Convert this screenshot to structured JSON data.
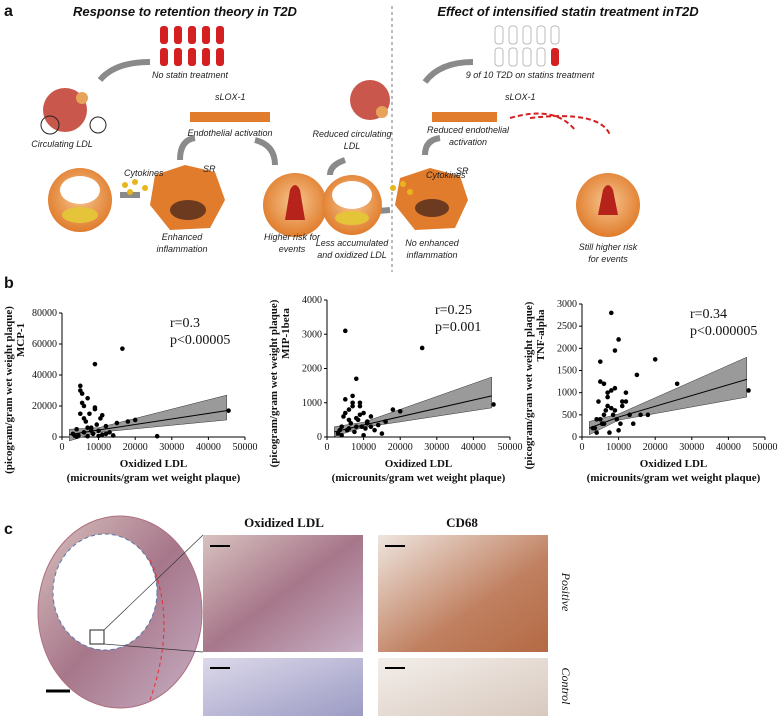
{
  "panel_a": {
    "label": "a",
    "title_left": "Response to retention theory in T2D",
    "title_right": "Effect of intensified statin treatment inT2D",
    "no_statin": "No statin treatment",
    "slox_left": "sLOX-1",
    "endothelial_activation": "Endothelial activation",
    "circulating_ldl": "Circulating LDL",
    "cytokines_left": "Cytokines",
    "sr_left": "SR",
    "enhanced_inflammation": [
      "Enhanced",
      "inflammation"
    ],
    "higher_risk": [
      "Higher risk for",
      "events"
    ],
    "statins": "9 of 10 T2D on statins treatment",
    "slox_right": "sLOX-1",
    "reduced_circulating": [
      "Reduced circulating",
      "LDL"
    ],
    "reduced_endothelial": [
      "Reduced endothelial",
      "activation"
    ],
    "cytokines_right": "Cytokines",
    "sr_right": "SR",
    "less_accumulated": [
      "Less accumulated",
      "and oxidized LDL"
    ],
    "no_enhanced": [
      "No enhanced",
      "inflammation"
    ],
    "still_higher": [
      "Still higher risk",
      "for events"
    ]
  },
  "panel_b": {
    "label": "b"
  },
  "chart_data": [
    {
      "type": "scatter",
      "y_label": [
        "MCP-1",
        "(picogram/gram wet weight plaque)"
      ],
      "x_label": [
        "Oxidized LDL",
        "(microunits/gram wet weight plaque)"
      ],
      "annotations": [
        "r=0.3",
        "p<0.00005"
      ],
      "x": [
        3000,
        4000,
        4500,
        5000,
        5500,
        6000,
        6500,
        7000,
        7500,
        8000,
        8500,
        9000,
        9500,
        10000,
        10500,
        11000,
        12000,
        13000,
        14000,
        15000,
        4000,
        5000,
        6000,
        7000,
        8000,
        9000,
        10000,
        11000,
        3500,
        5000,
        5500,
        9000,
        16500,
        45500,
        20000,
        18000,
        26000,
        12000,
        7000,
        6000
      ],
      "values": [
        2000,
        5000,
        1000,
        33000,
        28000,
        3000,
        10000,
        500,
        15000,
        6000,
        2000,
        47000,
        8000,
        4000,
        12000,
        1500,
        7000,
        3000,
        1000,
        9000,
        200,
        15000,
        20000,
        25000,
        4000,
        18000,
        700,
        14000,
        800,
        30000,
        22000,
        19000,
        57000,
        17000,
        11000,
        10000,
        500,
        2000,
        6000,
        12000
      ],
      "color": "#000000",
      "fit": {
        "x": [
          2000,
          10000,
          45000
        ],
        "y": [
          1500,
          4500,
          17000
        ],
        "lower": [
          -2500,
          3000,
          11000
        ],
        "upper": [
          5000,
          6000,
          27000
        ]
      },
      "xlim": [
        0,
        50000
      ],
      "ylim": [
        0,
        80000
      ],
      "xticks": [
        0,
        10000,
        20000,
        30000,
        40000,
        50000
      ],
      "yticks": [
        0,
        20000,
        40000,
        60000,
        80000
      ]
    },
    {
      "type": "scatter",
      "y_label": [
        "MIP-1beta",
        "(picogram/gram wet weight plaque)"
      ],
      "x_label": [
        "Oxidized LDL",
        "(microunits/gram wet weight plaque)"
      ],
      "annotations": [
        "r=0.25",
        "p=0.001"
      ],
      "x": [
        3000,
        4000,
        4500,
        5000,
        5500,
        6000,
        6500,
        7000,
        7500,
        8000,
        8500,
        9000,
        9500,
        10000,
        10500,
        11000,
        12000,
        13000,
        14000,
        15000,
        4000,
        5000,
        6000,
        7000,
        8000,
        9000,
        10000,
        11000,
        3500,
        5000,
        26000,
        45500,
        18000,
        20000,
        12000,
        7000,
        6000,
        8000,
        16000,
        9000
      ],
      "values": [
        100,
        300,
        600,
        3100,
        200,
        800,
        400,
        1000,
        150,
        1700,
        500,
        900,
        300,
        700,
        250,
        400,
        600,
        200,
        350,
        100,
        50,
        1100,
        500,
        900,
        300,
        650,
        50,
        450,
        200,
        700,
        2600,
        950,
        800,
        750,
        300,
        1200,
        250,
        550,
        450,
        1000
      ],
      "color": "#000000",
      "fit": {
        "x": [
          2000,
          10000,
          45000
        ],
        "y": [
          150,
          350,
          1200
        ],
        "lower": [
          20,
          280,
          850
        ],
        "upper": [
          300,
          430,
          1750
        ]
      },
      "xlim": [
        0,
        50000
      ],
      "ylim": [
        0,
        4000
      ],
      "xticks": [
        0,
        10000,
        20000,
        30000,
        40000,
        50000
      ],
      "yticks": [
        0,
        1000,
        2000,
        3000,
        4000
      ]
    },
    {
      "type": "scatter",
      "y_label": [
        "TNF-alpha",
        "(picogram/gram wet weight plaque)"
      ],
      "x_label": [
        "Oxidized LDL",
        "(microunits/gram wet weight plaque)"
      ],
      "annotations": [
        "r=0.34",
        "p<0.000005"
      ],
      "x": [
        3000,
        4000,
        4500,
        5000,
        5500,
        6000,
        6500,
        7000,
        7500,
        8000,
        8500,
        9000,
        9500,
        10000,
        10500,
        11000,
        12000,
        13000,
        14000,
        15000,
        4000,
        5000,
        6000,
        7000,
        8000,
        9000,
        10000,
        11000,
        3500,
        5000,
        20000,
        45500,
        18000,
        26000,
        12000,
        7000,
        6000,
        8000,
        16000,
        9000
      ],
      "values": [
        200,
        400,
        800,
        1700,
        300,
        1200,
        600,
        1000,
        100,
        2800,
        500,
        1950,
        400,
        2200,
        300,
        700,
        800,
        500,
        300,
        1400,
        100,
        1250,
        500,
        900,
        1050,
        600,
        150,
        800,
        200,
        400,
        1750,
        1050,
        500,
        1200,
        1000,
        700,
        300,
        650,
        500,
        1100
      ],
      "color": "#000000",
      "fit": {
        "x": [
          2000,
          10000,
          45000
        ],
        "y": [
          200,
          450,
          1300
        ],
        "lower": [
          50,
          380,
          900
        ],
        "upper": [
          350,
          520,
          1800
        ]
      },
      "xlim": [
        0,
        50000
      ],
      "ylim": [
        0,
        3000
      ],
      "xticks": [
        0,
        10000,
        20000,
        30000,
        40000,
        50000
      ],
      "yticks": [
        0,
        500,
        1000,
        1500,
        2000,
        2500,
        3000
      ]
    }
  ],
  "panel_c": {
    "label": "c",
    "col_oxldl": "Oxidized LDL",
    "col_cd68": "CD68",
    "row_positive": "Positive",
    "row_control": "Control"
  }
}
